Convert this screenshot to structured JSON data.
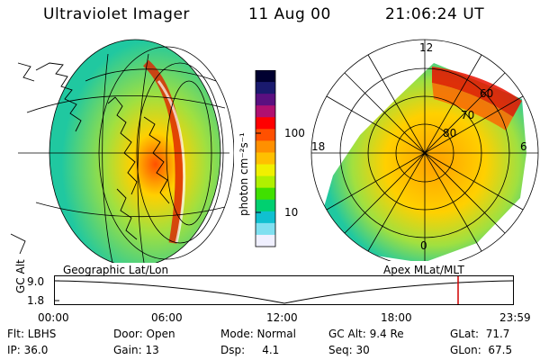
{
  "header": {
    "instrument": "Ultraviolet Imager",
    "date": "11 Aug 00",
    "time": "21:06:24 UT"
  },
  "colorbar": {
    "label": "photon cm⁻²s⁻¹",
    "ticks": [
      "100",
      "10"
    ],
    "colors": [
      "#000030",
      "#1a1a6e",
      "#5a1080",
      "#b01070",
      "#ff0000",
      "#ff5000",
      "#ff9000",
      "#ffc000",
      "#f0f000",
      "#b0f000",
      "#40e000",
      "#00d070",
      "#10c0d0",
      "#80e0f0",
      "#f0f0ff"
    ]
  },
  "geo": {
    "caption": "Geographic Lat/Lon",
    "colors": {
      "outer": "#20c8a0",
      "mid": "#a0e040",
      "inner": "#ffd000",
      "core": "#ff5000"
    }
  },
  "polar": {
    "caption": "Apex MLat/MLT",
    "mlt_labels": {
      "top": "12",
      "left": "18",
      "right": "6",
      "bottom": "0"
    },
    "mlat_labels": [
      "60",
      "70",
      "80"
    ]
  },
  "altitude": {
    "axis_label": "GC Alt",
    "ticks": [
      "9.0",
      "1.8"
    ],
    "time_ticks": [
      "00:00",
      "06:00",
      "12:00",
      "18:00",
      "23:59"
    ],
    "marker_color": "#d00000"
  },
  "status": {
    "flt": "Flt: LBHS",
    "ip": "IP: 36.0",
    "door": "Door: Open",
    "gain": "Gain: 13",
    "mode": "Mode: Normal",
    "dsp": "Dsp:     4.1",
    "gcalt": "GC Alt: 9.4 Re",
    "seq": "Seq: 30",
    "glat": "GLat:  71.7",
    "glon": "GLon:  67.5"
  }
}
